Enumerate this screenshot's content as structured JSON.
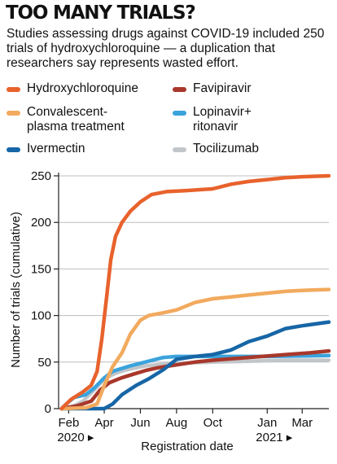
{
  "header": {
    "title": "TOO MANY TRIALS?",
    "subtitle": "Studies assessing drugs against COVID-19 included 250 trials of hydroxychloroquine — a duplication that researchers say represents wasted effort."
  },
  "legend": [
    {
      "label": "Hydroxychloroquine",
      "color": "#e8622c"
    },
    {
      "label": "Favipiravir",
      "color": "#a8382b"
    },
    {
      "label": "Convalescent-\nplasma treatment",
      "color": "#f2aa5e"
    },
    {
      "label": "Lopinavir+\nritonavir",
      "color": "#3ba3dc"
    },
    {
      "label": "Ivermectin",
      "color": "#1766a6"
    },
    {
      "label": "Tocilizumab",
      "color": "#c2c6ca"
    }
  ],
  "chart_data": {
    "type": "line",
    "xlabel": "Registration date",
    "ylabel": "Number of trials (cumulative)",
    "ylim": [
      0,
      250
    ],
    "yticks": [
      0,
      50,
      100,
      150,
      200,
      250
    ],
    "xlim": [
      "2020-01-15",
      "2021-04-15"
    ],
    "xticks": [
      {
        "date": "2020-02-01",
        "label": "Feb",
        "sub": "2020 ▸"
      },
      {
        "date": "2020-04-01",
        "label": "Apr",
        "sub": ""
      },
      {
        "date": "2020-06-01",
        "label": "Jun",
        "sub": ""
      },
      {
        "date": "2020-08-01",
        "label": "Aug",
        "sub": ""
      },
      {
        "date": "2020-10-01",
        "label": "Oct",
        "sub": ""
      },
      {
        "date": "2021-01-01",
        "label": "Jan",
        "sub": "2021 ▸"
      },
      {
        "date": "2021-03-01",
        "label": "Mar",
        "sub": ""
      }
    ],
    "series": [
      {
        "name": "Tocilizumab",
        "color": "#c2c6ca",
        "points": [
          [
            "2020-01-20",
            0
          ],
          [
            "2020-02-10",
            3
          ],
          [
            "2020-02-25",
            8
          ],
          [
            "2020-03-15",
            20
          ],
          [
            "2020-04-01",
            32
          ],
          [
            "2020-04-20",
            38
          ],
          [
            "2020-05-10",
            42
          ],
          [
            "2020-06-10",
            46
          ],
          [
            "2020-07-15",
            48
          ],
          [
            "2020-08-15",
            49
          ],
          [
            "2020-10-01",
            50
          ],
          [
            "2020-12-01",
            51
          ],
          [
            "2021-02-01",
            52
          ],
          [
            "2021-04-15",
            52
          ]
        ]
      },
      {
        "name": "Lopinavir+ritonavir",
        "color": "#3ba3dc",
        "points": [
          [
            "2020-01-20",
            0
          ],
          [
            "2020-01-28",
            5
          ],
          [
            "2020-02-10",
            12
          ],
          [
            "2020-03-01",
            15
          ],
          [
            "2020-03-15",
            22
          ],
          [
            "2020-04-01",
            33
          ],
          [
            "2020-04-15",
            40
          ],
          [
            "2020-05-15",
            46
          ],
          [
            "2020-06-15",
            51
          ],
          [
            "2020-07-10",
            55
          ],
          [
            "2020-08-01",
            56
          ],
          [
            "2020-10-01",
            56
          ],
          [
            "2021-01-01",
            56
          ],
          [
            "2021-04-15",
            57
          ]
        ]
      },
      {
        "name": "Favipiravir",
        "color": "#a8382b",
        "points": [
          [
            "2020-01-20",
            0
          ],
          [
            "2020-02-15",
            3
          ],
          [
            "2020-03-10",
            8
          ],
          [
            "2020-03-25",
            20
          ],
          [
            "2020-04-10",
            28
          ],
          [
            "2020-04-30",
            33
          ],
          [
            "2020-05-20",
            37
          ],
          [
            "2020-06-10",
            41
          ],
          [
            "2020-07-01",
            44
          ],
          [
            "2020-08-01",
            47
          ],
          [
            "2020-09-01",
            50
          ],
          [
            "2020-10-01",
            52
          ],
          [
            "2020-12-01",
            55
          ],
          [
            "2021-02-01",
            58
          ],
          [
            "2021-03-15",
            60
          ],
          [
            "2021-04-15",
            62
          ]
        ]
      },
      {
        "name": "Ivermectin",
        "color": "#1766a6",
        "points": [
          [
            "2020-01-20",
            0
          ],
          [
            "2020-04-01",
            0
          ],
          [
            "2020-04-15",
            5
          ],
          [
            "2020-05-01",
            15
          ],
          [
            "2020-05-25",
            25
          ],
          [
            "2020-06-15",
            32
          ],
          [
            "2020-07-10",
            42
          ],
          [
            "2020-08-01",
            53
          ],
          [
            "2020-09-01",
            56
          ],
          [
            "2020-10-01",
            58
          ],
          [
            "2020-11-01",
            63
          ],
          [
            "2020-12-01",
            72
          ],
          [
            "2021-01-01",
            78
          ],
          [
            "2021-02-01",
            86
          ],
          [
            "2021-03-01",
            89
          ],
          [
            "2021-04-15",
            93
          ]
        ]
      },
      {
        "name": "Convalescent-plasma treatment",
        "color": "#f2aa5e",
        "points": [
          [
            "2020-01-20",
            0
          ],
          [
            "2020-03-01",
            1
          ],
          [
            "2020-03-20",
            5
          ],
          [
            "2020-04-01",
            25
          ],
          [
            "2020-04-15",
            45
          ],
          [
            "2020-05-01",
            60
          ],
          [
            "2020-05-15",
            80
          ],
          [
            "2020-06-01",
            95
          ],
          [
            "2020-06-15",
            100
          ],
          [
            "2020-07-10",
            103
          ],
          [
            "2020-08-01",
            106
          ],
          [
            "2020-09-01",
            114
          ],
          [
            "2020-10-01",
            118
          ],
          [
            "2020-11-01",
            120
          ],
          [
            "2020-12-01",
            122
          ],
          [
            "2021-01-01",
            124
          ],
          [
            "2021-02-01",
            126
          ],
          [
            "2021-03-01",
            127
          ],
          [
            "2021-04-15",
            128
          ]
        ]
      },
      {
        "name": "Hydroxychloroquine",
        "color": "#e8622c",
        "points": [
          [
            "2020-01-20",
            0
          ],
          [
            "2020-02-05",
            10
          ],
          [
            "2020-02-25",
            18
          ],
          [
            "2020-03-10",
            25
          ],
          [
            "2020-03-20",
            40
          ],
          [
            "2020-03-28",
            75
          ],
          [
            "2020-04-05",
            120
          ],
          [
            "2020-04-12",
            160
          ],
          [
            "2020-04-20",
            185
          ],
          [
            "2020-05-01",
            200
          ],
          [
            "2020-05-15",
            212
          ],
          [
            "2020-06-01",
            222
          ],
          [
            "2020-06-20",
            230
          ],
          [
            "2020-07-15",
            233
          ],
          [
            "2020-08-15",
            234
          ],
          [
            "2020-10-01",
            236
          ],
          [
            "2020-11-01",
            241
          ],
          [
            "2020-12-01",
            244
          ],
          [
            "2021-01-01",
            246
          ],
          [
            "2021-02-01",
            248
          ],
          [
            "2021-03-01",
            249
          ],
          [
            "2021-04-15",
            250
          ]
        ]
      }
    ]
  }
}
